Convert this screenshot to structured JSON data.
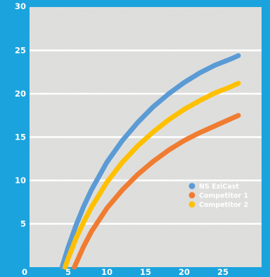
{
  "chart_data": {
    "type": "line",
    "title": "",
    "xlabel": "",
    "ylabel": "",
    "xlim": [
      0,
      30
    ],
    "ylim": [
      0,
      30
    ],
    "x_ticks": [
      "0",
      "5",
      "10",
      "15",
      "20",
      "25"
    ],
    "y_ticks": [
      "5",
      "10",
      "15",
      "20",
      "25",
      "30"
    ],
    "grid": true,
    "legend_position": "right",
    "series": [
      {
        "name": "NS EziCast",
        "color": "#5b9bd5",
        "x": [
          4.2,
          5,
          6,
          7,
          8,
          10,
          12,
          14,
          16,
          18,
          20,
          22,
          24,
          26,
          27
        ],
        "y": [
          0,
          2.3,
          4.8,
          7.0,
          8.9,
          12.1,
          14.6,
          16.7,
          18.5,
          20.0,
          21.3,
          22.4,
          23.3,
          24.0,
          24.4
        ]
      },
      {
        "name": "Competitor 1",
        "color": "#f07c31",
        "x": [
          5.8,
          7,
          8,
          10,
          12,
          14,
          16,
          18,
          20,
          22,
          24,
          26,
          27
        ],
        "y": [
          0,
          2.4,
          4.1,
          6.8,
          8.9,
          10.7,
          12.2,
          13.5,
          14.6,
          15.5,
          16.3,
          17.1,
          17.5
        ]
      },
      {
        "name": "Competitor 2",
        "color": "#ffc000",
        "x": [
          4.6,
          5,
          6,
          7,
          8,
          10,
          12,
          14,
          16,
          18,
          20,
          22,
          24,
          26,
          27
        ],
        "y": [
          0,
          1.0,
          3.3,
          5.2,
          6.9,
          9.8,
          12.1,
          14.0,
          15.6,
          17.0,
          18.2,
          19.2,
          20.1,
          20.8,
          21.2
        ]
      }
    ]
  },
  "colors": {
    "frame": "#1ba3dd",
    "plot_background": "#e2e3e1",
    "gridline": "#ffffff",
    "tick_text": "#ffffff"
  }
}
